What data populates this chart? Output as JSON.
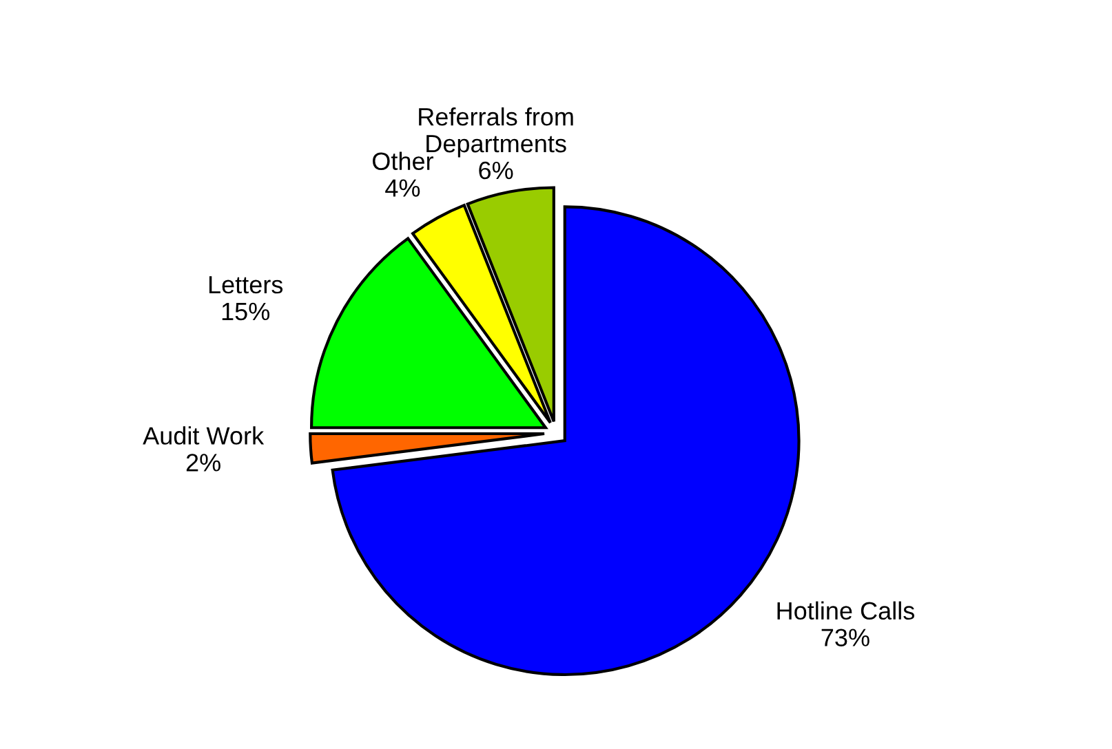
{
  "chart_data": {
    "type": "pie",
    "categories": [
      "Hotline Calls",
      "Audit Work",
      "Letters",
      "Other",
      "Referrals from Departments"
    ],
    "values": [
      73,
      2,
      15,
      4,
      6
    ],
    "value_labels": [
      "73%",
      "2%",
      "15%",
      "4%",
      "6%"
    ],
    "colors": [
      "#0000ff",
      "#ff6600",
      "#00ff00",
      "#ffff00",
      "#99cc00"
    ],
    "legend": false
  }
}
